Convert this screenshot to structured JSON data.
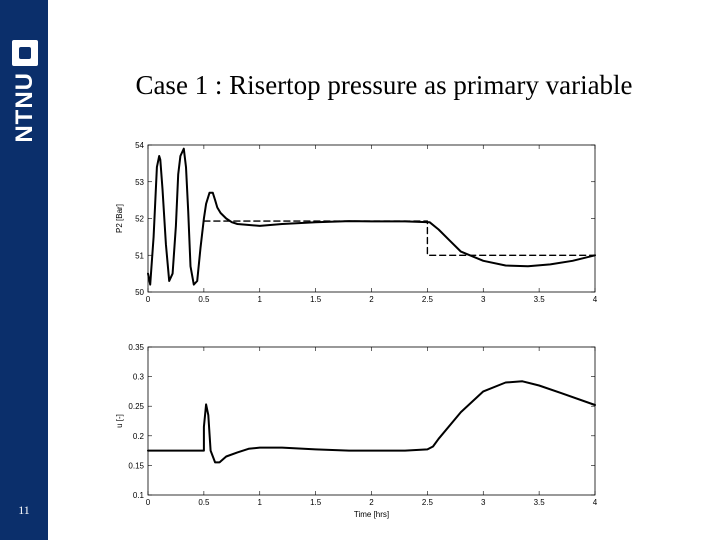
{
  "slide": {
    "title": "Case 1 : Risertop pressure as primary variable",
    "page_number": "11",
    "logo_text": "NTNU",
    "colors": {
      "sidebar": "#0b2f6b",
      "line": "#000000",
      "background": "#ffffff"
    }
  },
  "chart_data": [
    {
      "type": "line",
      "xlabel": "",
      "ylabel": "P2 [Bar]",
      "xlim": [
        0,
        4
      ],
      "ylim": [
        50,
        54
      ],
      "xticks": [
        "0",
        "0.5",
        "1",
        "1.5",
        "2",
        "2.5",
        "3",
        "3.5",
        "4"
      ],
      "yticks": [
        "50",
        "51",
        "52",
        "53",
        "54"
      ],
      "series": [
        {
          "style": "solid",
          "x": [
            0,
            0.02,
            0.05,
            0.08,
            0.1,
            0.11,
            0.13,
            0.16,
            0.19,
            0.22,
            0.25,
            0.27,
            0.29,
            0.32,
            0.34,
            0.36,
            0.38,
            0.41,
            0.44,
            0.47,
            0.5,
            0.52,
            0.55,
            0.58,
            0.6,
            0.62,
            0.65,
            0.7,
            0.75,
            0.8,
            1.0,
            1.2,
            1.5,
            1.8,
            2.0,
            2.3,
            2.52,
            2.6,
            2.7,
            2.8,
            3.0,
            3.2,
            3.4,
            3.6,
            3.8,
            4.0
          ],
          "y": [
            50.5,
            50.2,
            51.5,
            53.4,
            53.7,
            53.6,
            52.8,
            51.3,
            50.3,
            50.5,
            51.8,
            53.2,
            53.7,
            53.9,
            53.4,
            52.2,
            50.7,
            50.2,
            50.3,
            51.2,
            52.0,
            52.4,
            52.7,
            52.7,
            52.5,
            52.3,
            52.15,
            52.0,
            51.9,
            51.85,
            51.8,
            51.85,
            51.9,
            51.93,
            51.92,
            51.92,
            51.9,
            51.7,
            51.4,
            51.1,
            50.85,
            50.72,
            50.7,
            50.75,
            50.85,
            51.0
          ]
        },
        {
          "style": "dashed",
          "x": [
            0.5,
            2.5,
            2.5,
            4.0
          ],
          "y": [
            51.93,
            51.93,
            51.0,
            51.0
          ]
        }
      ]
    },
    {
      "type": "line",
      "xlabel": "Time [hrs]",
      "ylabel": "u [-]",
      "xlim": [
        0,
        4
      ],
      "ylim": [
        0.1,
        0.35
      ],
      "xticks": [
        "0",
        "0.5",
        "1",
        "1.5",
        "2",
        "2.5",
        "3",
        "3.5",
        "4"
      ],
      "yticks": [
        "0.1",
        "0.15",
        "0.2",
        "0.25",
        "0.3",
        "0.35"
      ],
      "series": [
        {
          "style": "solid",
          "x": [
            0,
            0.5,
            0.5,
            0.52,
            0.54,
            0.56,
            0.6,
            0.64,
            0.7,
            0.8,
            0.9,
            1.0,
            1.2,
            1.5,
            1.8,
            2.0,
            2.3,
            2.5,
            2.55,
            2.6,
            2.8,
            3.0,
            3.2,
            3.35,
            3.5,
            3.7,
            4.0
          ],
          "y": [
            0.175,
            0.175,
            0.215,
            0.253,
            0.235,
            0.175,
            0.155,
            0.155,
            0.165,
            0.172,
            0.178,
            0.18,
            0.18,
            0.177,
            0.175,
            0.175,
            0.175,
            0.177,
            0.182,
            0.195,
            0.24,
            0.275,
            0.29,
            0.292,
            0.285,
            0.272,
            0.252
          ]
        }
      ]
    }
  ]
}
